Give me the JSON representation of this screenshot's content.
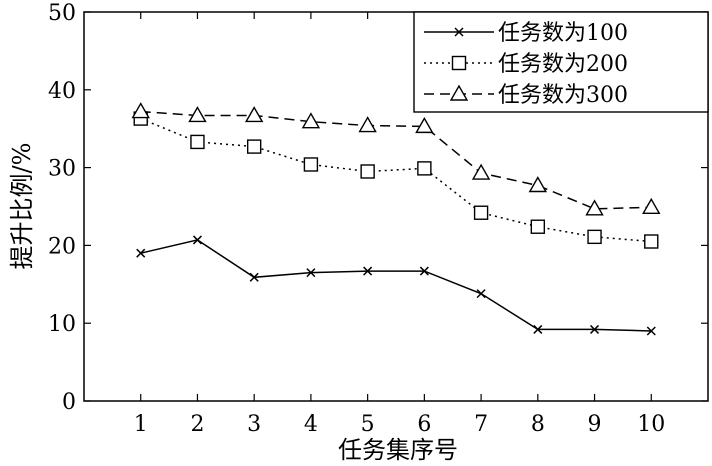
{
  "chart_data": {
    "type": "line",
    "title": "",
    "xlabel": "任务集序号",
    "ylabel": "提升比例/%",
    "x": [
      1,
      2,
      3,
      4,
      5,
      6,
      7,
      8,
      9,
      10
    ],
    "xlim": [
      0,
      11
    ],
    "ylim": [
      0,
      50
    ],
    "xticks": [
      "1",
      "2",
      "3",
      "4",
      "5",
      "6",
      "7",
      "8",
      "9",
      "10"
    ],
    "yticks": [
      "0",
      "10",
      "20",
      "30",
      "40",
      "50"
    ],
    "grid": false,
    "legend_position": "top-right",
    "series": [
      {
        "name": "任务数为100",
        "marker": "x",
        "line_style": "solid",
        "values": [
          19.0,
          20.7,
          15.9,
          16.5,
          16.7,
          16.7,
          13.8,
          9.2,
          9.2,
          9.0
        ]
      },
      {
        "name": "任务数为200",
        "marker": "square",
        "line_style": "dotted",
        "values": [
          36.3,
          33.3,
          32.7,
          30.4,
          29.5,
          29.9,
          24.2,
          22.4,
          21.1,
          20.5
        ]
      },
      {
        "name": "任务数为300",
        "marker": "triangle",
        "line_style": "dashed",
        "values": [
          37.2,
          36.7,
          36.7,
          35.9,
          35.4,
          35.3,
          29.3,
          27.7,
          24.7,
          24.9
        ]
      }
    ]
  }
}
